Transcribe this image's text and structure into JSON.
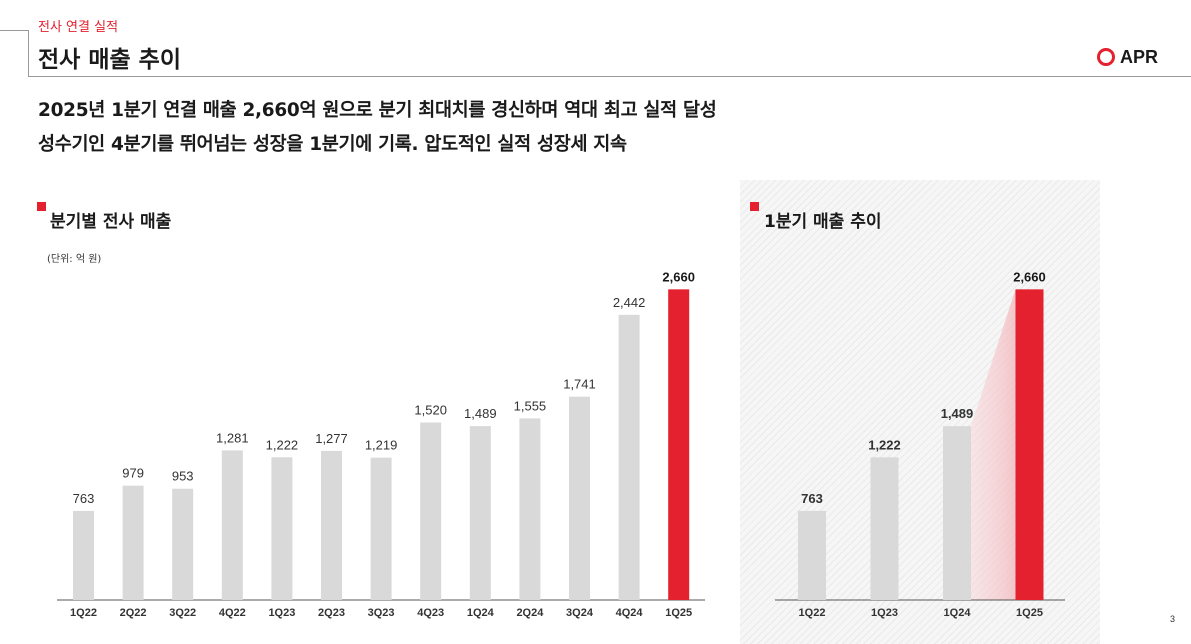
{
  "header": {
    "section": "전사 연결 실적",
    "title": "전사 매출 추이",
    "logo_text": "APR"
  },
  "headlines": [
    "2025년 1분기 연결 매출 2,660억 원으로 분기 최대치를 경신하며 역대 최고 실적 달성",
    "성수기인 4분기를 뛰어넘는 성장을 1분기에 기록. 압도적인 실적 성장세 지속"
  ],
  "colors": {
    "accent": "#e3212f",
    "bar": "#d9d9d9",
    "value_text": "#333333"
  },
  "chart_data": [
    {
      "type": "bar",
      "title": "분기별 전사 매출",
      "unit": "(단위: 억 원)",
      "categories": [
        "1Q22",
        "2Q22",
        "3Q22",
        "4Q22",
        "1Q23",
        "2Q23",
        "3Q23",
        "4Q23",
        "1Q24",
        "2Q24",
        "3Q24",
        "4Q24",
        "1Q25"
      ],
      "values": [
        763,
        979,
        953,
        1281,
        1222,
        1277,
        1219,
        1520,
        1489,
        1555,
        1741,
        2442,
        2660
      ],
      "value_labels": [
        "763",
        "979",
        "953",
        "1,281",
        "1,222",
        "1,277",
        "1,219",
        "1,520",
        "1,489",
        "1,555",
        "1,741",
        "2,442",
        "2,660"
      ],
      "highlight": "1Q25",
      "ylim": [
        0,
        2800
      ],
      "grid": false
    },
    {
      "type": "bar",
      "title": "1분기 매출 추이",
      "categories": [
        "1Q22",
        "1Q23",
        "1Q24",
        "1Q25"
      ],
      "values": [
        763,
        1222,
        1489,
        2660
      ],
      "value_labels": [
        "763",
        "1,222",
        "1,489",
        "2,660"
      ],
      "highlight": "1Q25",
      "ylim": [
        0,
        2800
      ],
      "grid": false
    }
  ],
  "page_number": "3"
}
